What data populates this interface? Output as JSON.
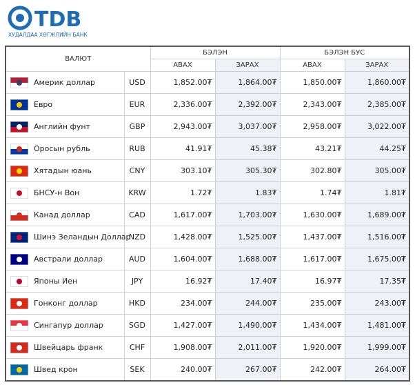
{
  "header": {
    "logo": "TDB",
    "subtitle": "ХУДАЛДАА ХӨГЖЛИЙН БАНК"
  },
  "table": {
    "columns": {
      "currency": "ВАЛЮТ",
      "cash": "БЭЛЭН",
      "noncash": "БЭЛЭН БУС",
      "buy": "АВАХ",
      "sell": "ЗАРАХ"
    },
    "rows": [
      [
        "Америк доллар",
        "USD",
        "1,852.00₮",
        "1,864.00₮",
        "1,850.00₮",
        "1,860.00₮"
      ],
      [
        "Евро",
        "EUR",
        "2,336.00₮",
        "2,392.00₮",
        "2,343.00₮",
        "2,385.00₮"
      ],
      [
        "Английн фунт",
        "GBP",
        "2,943.00₮",
        "3,037.00₮",
        "2,958.00₮",
        "3,022.00₮"
      ],
      [
        "Оросын рубль",
        "RUB",
        "41.91₮",
        "45.38₮",
        "43.21₮",
        "44.25₮"
      ],
      [
        "Хятадын юань",
        "CNY",
        "303.10₮",
        "305.30₮",
        "302.80₮",
        "305.00₮"
      ],
      [
        "БНСУ-н Вон",
        "KRW",
        "1.72₮",
        "1.83₮",
        "1.74₮",
        "1.81₮"
      ],
      [
        "Канад доллар",
        "CAD",
        "1,617.00₮",
        "1,703.00₮",
        "1,630.00₮",
        "1,689.00₮"
      ],
      [
        "Шинэ Зеландын Доллар",
        "NZD",
        "1,428.00₮",
        "1,525.00₮",
        "1,437.00₮",
        "1,516.00₮"
      ],
      [
        "Австрали доллар",
        "AUD",
        "1,604.00₮",
        "1,688.00₮",
        "1,617.00₮",
        "1,675.00₮"
      ],
      [
        "Японы Иен",
        "JPY",
        "16.92₮",
        "17.40₮",
        "16.97₮",
        "17.35₮"
      ],
      [
        "Гонконг доллар",
        "HKD",
        "234.00₮",
        "244.00₮",
        "235.00₮",
        "243.00₮"
      ],
      [
        "Сингапур доллар",
        "SGD",
        "1,427.00₮",
        "1,490.00₮",
        "1,434.00₮",
        "1,481.00₮"
      ],
      [
        "Швейцарь франк",
        "CHF",
        "1,908.00₮",
        "2,011.00₮",
        "1,920.00₮",
        "1,999.00₮"
      ],
      [
        "Швед крон",
        "SEK",
        "240.00₮",
        "267.00₮",
        "242.00₮",
        "264.00₮"
      ]
    ]
  }
}
